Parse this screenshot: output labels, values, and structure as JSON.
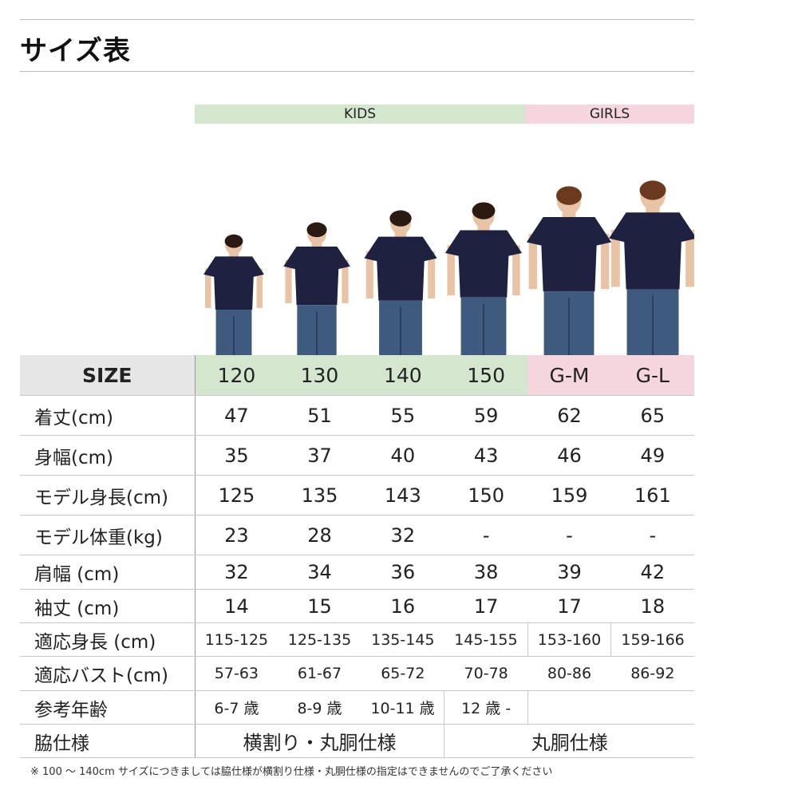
{
  "title": "サイズ表",
  "groups": {
    "kids": "KIDS",
    "girls": "GIRLS"
  },
  "colors": {
    "kids": "#d5e6cf",
    "girls": "#f5d5de",
    "size_header": "#e6e6e6",
    "shirt": "#1e2140",
    "jeans": "#3e5a7e"
  },
  "header": {
    "label": "SIZE",
    "sizes": [
      "120",
      "130",
      "140",
      "150",
      "G-M",
      "G-L"
    ]
  },
  "rows": [
    {
      "label": "着丈(cm)",
      "values": [
        "47",
        "51",
        "55",
        "59",
        "62",
        "65"
      ]
    },
    {
      "label": "身幅(cm)",
      "values": [
        "35",
        "37",
        "40",
        "43",
        "46",
        "49"
      ]
    },
    {
      "label": "モデル身長(cm)",
      "values": [
        "125",
        "135",
        "143",
        "150",
        "159",
        "161"
      ]
    },
    {
      "label": "モデル体重(kg)",
      "values": [
        "23",
        "28",
        "32",
        "-",
        "-",
        "-"
      ]
    },
    {
      "label": "肩幅 (cm)",
      "values": [
        "32",
        "34",
        "36",
        "38",
        "39",
        "42"
      ]
    },
    {
      "label": "袖丈 (cm)",
      "values": [
        "14",
        "15",
        "16",
        "17",
        "17",
        "18"
      ]
    },
    {
      "label": "適応身長 (cm)",
      "values": [
        "115-125",
        "125-135",
        "135-145",
        "145-155",
        "153-160",
        "159-166"
      ]
    },
    {
      "label": "適応バスト(cm)",
      "values": [
        "57-63",
        "61-67",
        "65-72",
        "70-78",
        "80-86",
        "86-92"
      ]
    },
    {
      "label": "参考年齢",
      "values": [
        "6-7 歳",
        "8-9 歳",
        "10-11 歳",
        "12 歳 -",
        ""
      ]
    },
    {
      "label": "脇仕様",
      "values": [
        "横割り・丸胴仕様",
        "丸胴仕様"
      ]
    }
  ],
  "note": "※ 100 〜 140cm サイズにつきましては脇仕様が横割り仕様・丸胴仕様の指定はできませんのでご了承ください"
}
